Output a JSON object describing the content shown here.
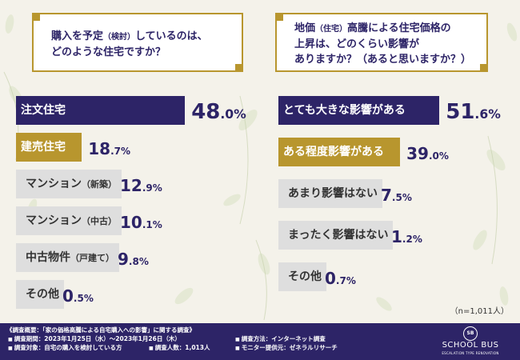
{
  "chart_data": [
    {
      "type": "bar",
      "title": "購入を予定（検討）しているのは、どのような住宅ですか？",
      "categories": [
        "注文住宅",
        "建売住宅",
        "マンション（新築）",
        "マンション（中古）",
        "中古物件（戸建て）",
        "その他"
      ],
      "values": [
        48.0,
        18.7,
        12.9,
        10.1,
        9.8,
        0.5
      ],
      "unit": "%"
    },
    {
      "type": "bar",
      "title": "地価（住宅）高騰による住宅価格の上昇は、どのくらい影響がありますか？（あると思いますか？）",
      "categories": [
        "とても大きな影響がある",
        "ある程度影響がある",
        "あまり影響はない",
        "まったく影響はない",
        "その他"
      ],
      "values": [
        51.6,
        39.0,
        7.5,
        1.2,
        0.7
      ],
      "unit": "%"
    }
  ],
  "left": {
    "question_line1": "購入を予定",
    "question_paren": "（検討）",
    "question_line1b": "しているのは、",
    "question_line2": "どのような住宅ですか？",
    "bars": [
      {
        "label": "注文住宅",
        "paren": "",
        "num": "48",
        "dec": ".0%"
      },
      {
        "label": "建売住宅",
        "paren": "",
        "num": "18",
        "dec": ".7%"
      },
      {
        "label": "マンション",
        "paren": "（新築）",
        "num": "12",
        "dec": ".9%"
      },
      {
        "label": "マンション",
        "paren": "（中古）",
        "num": "10",
        "dec": ".1%"
      },
      {
        "label": "中古物件",
        "paren": "（戸建て）",
        "num": "9",
        "dec": ".8%"
      },
      {
        "label": "その他",
        "paren": "",
        "num": "0",
        "dec": ".5%"
      }
    ]
  },
  "right": {
    "question_line1a": "地価",
    "question_paren": "（住宅）",
    "question_line1b": "高騰による住宅価格の",
    "question_line2": "上昇は、どのくらい影響が",
    "question_line3": "ありますか？（あると思いますか？）",
    "bars": [
      {
        "label": "とても大きな影響がある",
        "num": "51",
        "dec": ".6%"
      },
      {
        "label": "ある程度影響がある",
        "num": "39",
        "dec": ".0%"
      },
      {
        "label": "あまり影響はない",
        "num": "7",
        "dec": ".5%"
      },
      {
        "label": "まったく影響はない",
        "num": "1",
        "dec": ".2%"
      },
      {
        "label": "その他",
        "num": "0",
        "dec": ".7%"
      }
    ]
  },
  "n_note": "（n=1,011人）",
  "footer": {
    "title": "《調査概要：「家の価格高騰による自宅購入への影響」に関する調査》",
    "period": "調査期間：2023年1月25日（水）〜2023年1月26日（木）",
    "method": "調査方法：インターネット調査",
    "target": "調査対象：自宅の購入を検討している方",
    "people": "調査人数：1,013人",
    "provider": "モニター提供元：ゼネラルリサーチ",
    "logo_mark": "SB",
    "logo_name": "SCHOOL BUS",
    "logo_sub": "ESCALATION TYPE RENOVATION"
  },
  "colors": {
    "navy": "#2d2467",
    "gold": "#b8962e",
    "grey": "#dedede",
    "bg": "#f4f2ea"
  }
}
